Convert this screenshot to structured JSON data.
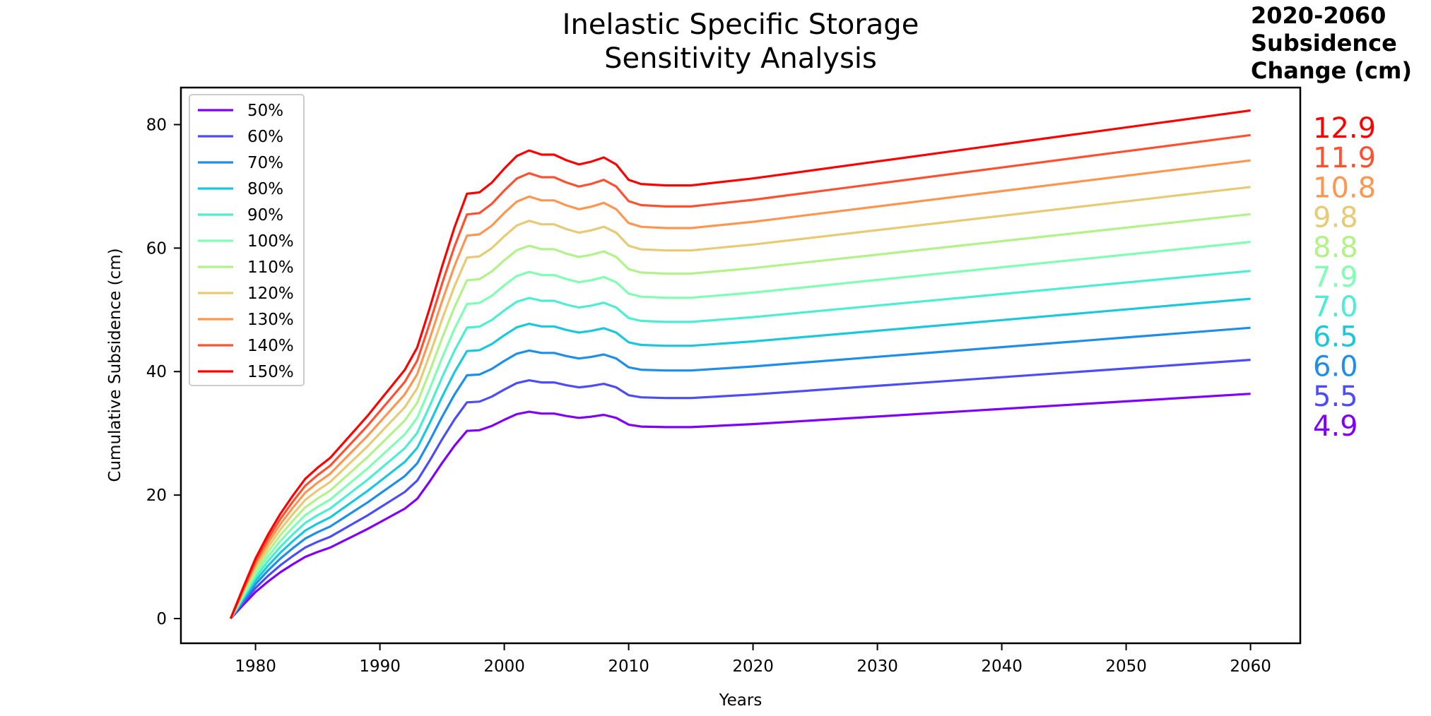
{
  "chart_data": {
    "type": "line",
    "title_line1": "Inelastic Specific Storage",
    "title_line2": "Sensitivity Analysis",
    "side_title": [
      "2020-2060",
      "Subsidence",
      "Change (cm)"
    ],
    "xlabel": "Years",
    "ylabel": "Cumulative Subsidence (cm)",
    "xlim": [
      1974,
      2064
    ],
    "ylim": [
      -4,
      86
    ],
    "xticks": [
      1980,
      1990,
      2000,
      2010,
      2020,
      2030,
      2040,
      2050,
      2060
    ],
    "yticks": [
      0,
      20,
      40,
      60,
      80
    ],
    "grid": false,
    "legend_position": "upper-left",
    "x": [
      1978,
      1979,
      1980,
      1981,
      1982,
      1983,
      1984,
      1985,
      1986,
      1987,
      1988,
      1989,
      1990,
      1991,
      1992,
      1993,
      1994,
      1995,
      1996,
      1997,
      1998,
      1999,
      2000,
      2001,
      2002,
      2003,
      2004,
      2005,
      2006,
      2007,
      2008,
      2009,
      2010,
      2011,
      2013,
      2015,
      2020,
      2030,
      2040,
      2050,
      2060
    ],
    "base_series": [
      0,
      2.2,
      4.3,
      6.0,
      7.5,
      8.8,
      10.0,
      10.8,
      11.5,
      12.5,
      13.5,
      14.5,
      15.6,
      16.7,
      17.8,
      19.4,
      22.2,
      25.2,
      28.0,
      30.4,
      30.5,
      31.2,
      32.2,
      33.1,
      33.5,
      33.2,
      33.2,
      32.8,
      32.5,
      32.7,
      33.0,
      32.5,
      31.4,
      31.1,
      31.0,
      31.0,
      31.5,
      32.7,
      33.9,
      35.1,
      36.3
    ],
    "series": [
      {
        "name": "50%",
        "color": "#8000ff",
        "ratio": 1.0,
        "final": 36.4
      },
      {
        "name": "60%",
        "color": "#4c4cf8",
        "ratio": 1.152,
        "final": 41.9
      },
      {
        "name": "70%",
        "color": "#1e8ee8",
        "ratio": 1.296,
        "final": 47.1
      },
      {
        "name": "80%",
        "color": "#19c8dc",
        "ratio": 1.425,
        "final": 51.8
      },
      {
        "name": "90%",
        "color": "#4ceed2",
        "ratio": 1.55,
        "final": 56.3
      },
      {
        "name": "100%",
        "color": "#80ffb4",
        "ratio": 1.676,
        "final": 61.0
      },
      {
        "name": "110%",
        "color": "#b2f288",
        "ratio": 1.802,
        "final": 65.5
      },
      {
        "name": "120%",
        "color": "#e6ca74",
        "ratio": 1.923,
        "final": 69.9
      },
      {
        "name": "130%",
        "color": "#ff9650",
        "ratio": 2.04,
        "final": 74.2
      },
      {
        "name": "140%",
        "color": "#ff5030",
        "ratio": 2.153,
        "final": 78.3
      },
      {
        "name": "150%",
        "color": "#ff0000",
        "ratio": 2.263,
        "final": 82.3
      }
    ],
    "change_labels": [
      {
        "value": "12.9",
        "color": "#ff0000"
      },
      {
        "value": "11.9",
        "color": "#ff5030"
      },
      {
        "value": "10.8",
        "color": "#ff9650"
      },
      {
        "value": "9.8",
        "color": "#e6ca74"
      },
      {
        "value": "8.8",
        "color": "#b2f288"
      },
      {
        "value": "7.9",
        "color": "#80ffb4"
      },
      {
        "value": "7.0",
        "color": "#4ceed2"
      },
      {
        "value": "6.5",
        "color": "#19c8dc"
      },
      {
        "value": "6.0",
        "color": "#1e8ee8"
      },
      {
        "value": "5.5",
        "color": "#4c4cf8"
      },
      {
        "value": "4.9",
        "color": "#8000ff"
      }
    ]
  }
}
